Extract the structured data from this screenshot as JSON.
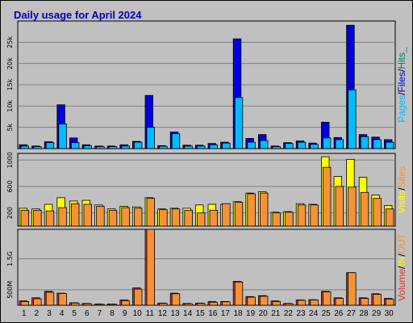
{
  "title": "Daily usage for April 2024",
  "colors": {
    "pages": "#00bbff",
    "files": "#0000dd",
    "hits": "#00806e",
    "visits": "#ffff00",
    "sites": "#f59238",
    "volume": "#e23424",
    "in": "#f4f400",
    "out": "#f59238",
    "weekend": "#00806e",
    "title": "#0000c0",
    "panel": "#c0c0c0"
  },
  "chart_data": [
    {
      "type": "bar",
      "categories": [
        "1",
        "2",
        "3",
        "4",
        "5",
        "6",
        "7",
        "8",
        "9",
        "10",
        "11",
        "12",
        "13",
        "14",
        "15",
        "16",
        "17",
        "18",
        "19",
        "20",
        "21",
        "22",
        "23",
        "24",
        "25",
        "26",
        "27",
        "28",
        "29",
        "30"
      ],
      "weekend_days": [
        "6",
        "7",
        "13",
        "14",
        "20",
        "21",
        "27",
        "28"
      ],
      "ylabel_parts": [
        "Pages",
        "/",
        "Files",
        "/",
        "Hits",
        "_"
      ],
      "y_ticks": [
        "5k",
        "10k",
        "15k",
        "20k",
        "25k"
      ],
      "y_tick_values": [
        5000,
        10000,
        15000,
        20000,
        25000
      ],
      "ylim": [
        0,
        30000
      ],
      "series": [
        {
          "values": [
            900,
            600,
            1600,
            10300,
            2500,
            900,
            600,
            600,
            900,
            1700,
            12500,
            700,
            3900,
            800,
            800,
            1200,
            1500,
            25800,
            2400,
            3300,
            600,
            1400,
            1800,
            1300,
            6200,
            2600,
            29000,
            3300,
            2700,
            2100
          ]
        },
        {
          "values": [
            600,
            450,
            1400,
            5800,
            1400,
            650,
            450,
            450,
            600,
            1500,
            5000,
            550,
            3500,
            600,
            600,
            900,
            1300,
            12000,
            1500,
            1900,
            450,
            1200,
            1500,
            1000,
            2500,
            2100,
            13800,
            2800,
            2100,
            1500
          ]
        }
      ]
    },
    {
      "type": "bar",
      "categories": [
        "1",
        "2",
        "3",
        "4",
        "5",
        "6",
        "7",
        "8",
        "9",
        "10",
        "11",
        "12",
        "13",
        "14",
        "15",
        "16",
        "17",
        "18",
        "19",
        "20",
        "21",
        "22",
        "23",
        "24",
        "25",
        "26",
        "27",
        "28",
        "29",
        "30"
      ],
      "ylabel_parts": [
        "Visits",
        "/",
        "Sites"
      ],
      "y_ticks": [
        "200",
        "600",
        "1000"
      ],
      "y_tick_values": [
        200,
        600,
        1000
      ],
      "ylim": [
        0,
        1100
      ],
      "series": [
        {
          "values": [
            270,
            260,
            330,
            430,
            380,
            390,
            320,
            260,
            300,
            290,
            430,
            260,
            270,
            270,
            320,
            330,
            330,
            370,
            500,
            520,
            210,
            220,
            340,
            330,
            1050,
            750,
            1010,
            740,
            470,
            310
          ]
        },
        {
          "values": [
            240,
            240,
            230,
            280,
            340,
            330,
            300,
            240,
            280,
            270,
            420,
            250,
            260,
            240,
            200,
            240,
            340,
            360,
            490,
            500,
            200,
            210,
            320,
            320,
            890,
            600,
            590,
            510,
            420,
            260
          ]
        }
      ]
    },
    {
      "type": "bar",
      "categories": [
        "1",
        "2",
        "3",
        "4",
        "5",
        "6",
        "7",
        "8",
        "9",
        "10",
        "11",
        "12",
        "13",
        "14",
        "15",
        "16",
        "17",
        "18",
        "19",
        "20",
        "21",
        "22",
        "23",
        "24",
        "25",
        "26",
        "27",
        "28",
        "29",
        "30"
      ],
      "ylabel_parts": [
        "Volume",
        "/",
        "IN",
        "/",
        "OUT"
      ],
      "y_ticks": [
        "500M",
        "1.5G"
      ],
      "y_tick_values": [
        500,
        1500
      ],
      "ylim": [
        0,
        2450
      ],
      "series": [
        {
          "values": [
            140,
            240,
            450,
            390,
            80,
            60,
            40,
            40,
            170,
            560,
            2450,
            70,
            390,
            60,
            70,
            120,
            120,
            770,
            280,
            310,
            140,
            60,
            170,
            180,
            450,
            240,
            1050,
            240,
            370,
            220
          ]
        },
        {
          "values": [
            120,
            210,
            420,
            380,
            70,
            50,
            30,
            30,
            150,
            520,
            2450,
            60,
            370,
            50,
            60,
            100,
            110,
            750,
            260,
            290,
            120,
            50,
            160,
            170,
            430,
            220,
            1050,
            220,
            350,
            200
          ]
        }
      ]
    }
  ]
}
